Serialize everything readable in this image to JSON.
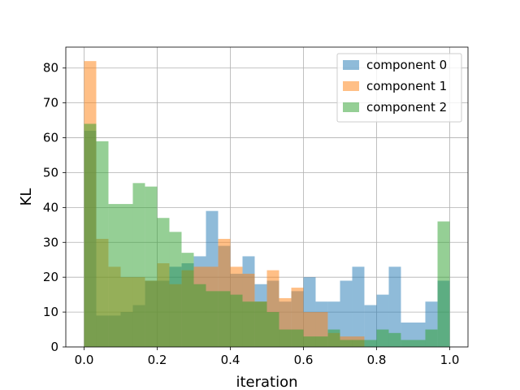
{
  "chart_data": {
    "type": "bar",
    "title": "",
    "xlabel": "iteration",
    "ylabel": "KL",
    "xlim": [
      -0.05,
      1.05
    ],
    "ylim": [
      0,
      86
    ],
    "xticks": [
      0.0,
      0.2,
      0.4,
      0.6,
      0.8,
      1.0
    ],
    "xtick_labels": [
      "0.0",
      "0.2",
      "0.4",
      "0.6",
      "0.8",
      "1.0"
    ],
    "yticks": [
      0,
      10,
      20,
      30,
      40,
      50,
      60,
      70,
      80
    ],
    "ytick_labels": [
      "0",
      "10",
      "20",
      "30",
      "40",
      "50",
      "60",
      "70",
      "80"
    ],
    "grid": true,
    "legend_position": "top-right",
    "bin_width": 0.0333,
    "bin_starts": [
      0.0,
      0.0333,
      0.0667,
      0.1,
      0.1333,
      0.1667,
      0.2,
      0.2333,
      0.2667,
      0.3,
      0.3333,
      0.3667,
      0.4,
      0.4333,
      0.4667,
      0.5,
      0.5333,
      0.5667,
      0.6,
      0.6333,
      0.6667,
      0.7,
      0.7333,
      0.7667,
      0.8,
      0.8333,
      0.8667,
      0.9,
      0.9333,
      0.9667
    ],
    "series": [
      {
        "name": "component 0",
        "color": "#1f77b4",
        "opacity": 0.5,
        "values": [
          62,
          9,
          9,
          10,
          12,
          19,
          19,
          23,
          24,
          26,
          39,
          29,
          21,
          26,
          18,
          19,
          13,
          16,
          20,
          13,
          13,
          19,
          23,
          12,
          15,
          23,
          7,
          7,
          13,
          19
        ]
      },
      {
        "name": "component 1",
        "color": "#ff7f0e",
        "opacity": 0.5,
        "values": [
          82,
          31,
          23,
          20,
          20,
          19,
          24,
          18,
          22,
          23,
          23,
          31,
          23,
          21,
          13,
          22,
          14,
          17,
          10,
          10,
          4,
          3,
          3,
          0,
          0,
          0,
          0,
          0,
          0,
          0
        ]
      },
      {
        "name": "component 2",
        "color": "#2ca02c",
        "opacity": 0.5,
        "values": [
          64,
          59,
          41,
          41,
          47,
          46,
          37,
          33,
          27,
          18,
          16,
          16,
          15,
          13,
          13,
          10,
          5,
          5,
          3,
          3,
          5,
          2,
          2,
          2,
          5,
          4,
          2,
          2,
          5,
          36
        ]
      }
    ]
  }
}
